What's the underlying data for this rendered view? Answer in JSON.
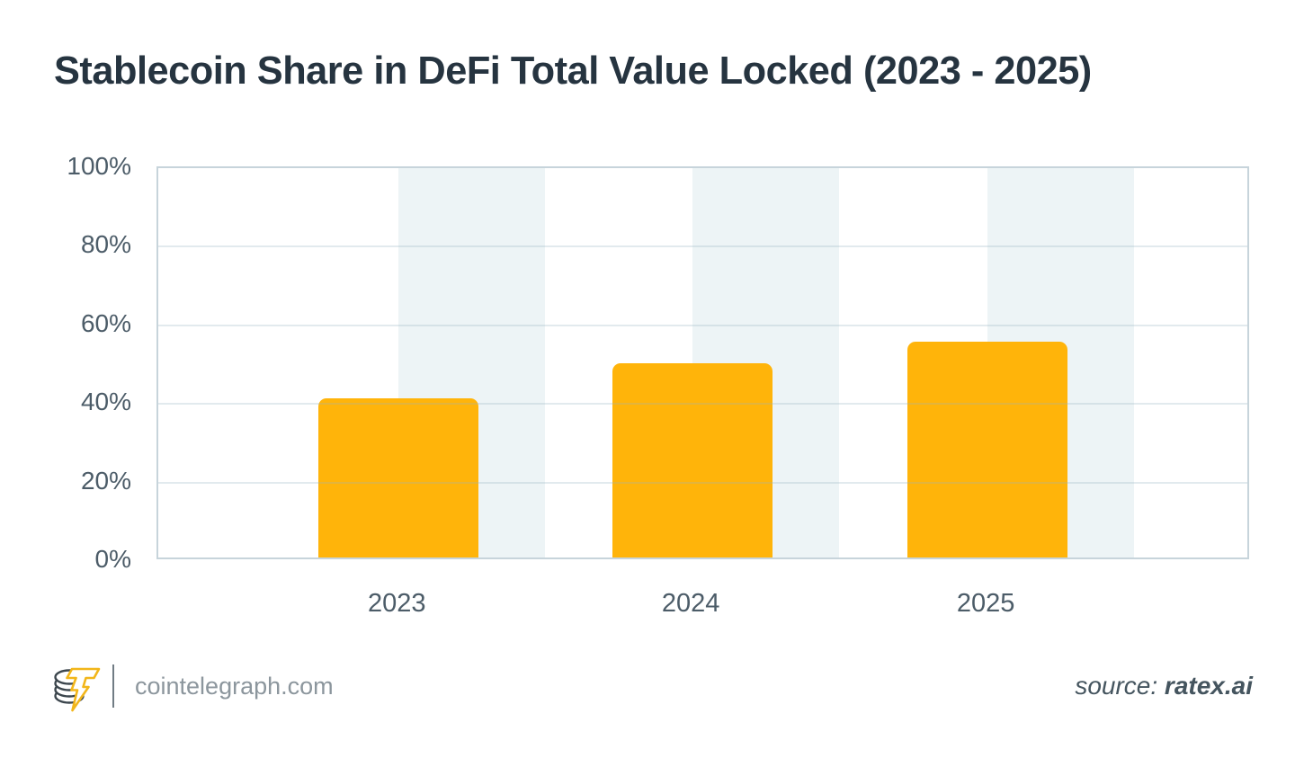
{
  "title": "Stablecoin Share in DeFi Total Value Locked (2023 - 2025)",
  "chart_data": {
    "type": "bar",
    "categories": [
      "2023",
      "2024",
      "2025"
    ],
    "values": [
      40.5,
      49.5,
      55
    ],
    "title": "Stablecoin Share in DeFi Total Value Locked (2023 - 2025)",
    "xlabel": "",
    "ylabel": "",
    "ylim": [
      0,
      100
    ],
    "yticks": [
      0,
      20,
      40,
      60,
      80,
      100
    ],
    "ytick_labels": [
      "0%",
      "20%",
      "40%",
      "60%",
      "80%",
      "100%"
    ],
    "grid": true,
    "legend_position": "none",
    "units": "percent"
  },
  "colors": {
    "bar": "#ffb40a",
    "band": "#edf4f6",
    "gridline": "#e6eef0",
    "plot_border": "#c7d4db",
    "title_text": "#263440",
    "axis_text": "#4c5c68",
    "footer_text": "#8c969d",
    "source_text": "#45555f",
    "logo_coin": "#3c464d",
    "logo_bolt": "#f2b61a"
  },
  "footer": {
    "site": "cointelegraph.com",
    "source_prefix": "source:",
    "source_name": "ratex.ai"
  }
}
